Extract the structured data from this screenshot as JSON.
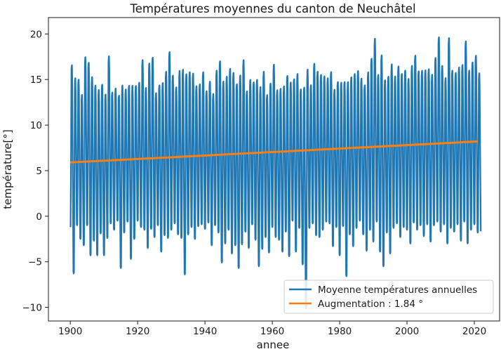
{
  "chart_data": {
    "type": "line",
    "title": "Températures moyennes du canton de Neuchâtel",
    "xlabel": "annee",
    "ylabel": "température[°]",
    "xlim": [
      1893.5,
      2027.5
    ],
    "ylim": [
      -11.5,
      21.8
    ],
    "xticks": [
      1900,
      1920,
      1940,
      1960,
      1980,
      2000,
      2020
    ],
    "yticks": [
      -10,
      -5,
      0,
      5,
      10,
      15,
      20
    ],
    "x_tick_labels": [
      "1900",
      "1920",
      "1940",
      "1960",
      "1980",
      "2000",
      "2020"
    ],
    "y_tick_labels": [
      "−10",
      "−5",
      "0",
      "5",
      "10",
      "15",
      "20"
    ],
    "grid": false,
    "legend_position": "lower right",
    "series": [
      {
        "name": "Moyenne températures annuelles",
        "color": "#1f77b4",
        "kind": "monthly",
        "x_start": 1900,
        "x_end": 2021,
        "summer_peaks": [
          17.5,
          15.8,
          15.7,
          14.0,
          18.2,
          17.7,
          16.0,
          15.1,
          14.5,
          15.2,
          14.0,
          18.3,
          14.2,
          14.6,
          14.0,
          15.0,
          14.5,
          15.1,
          15.0,
          14.9,
          15.3,
          17.9,
          14.8,
          17.5,
          18.2,
          14.1,
          15.1,
          15.3,
          16.6,
          18.8,
          16.1,
          14.8,
          16.7,
          17.0,
          16.3,
          16.5,
          16.4,
          14.9,
          15.1,
          16.5,
          14.3,
          15.5,
          14.0,
          16.7,
          17.9,
          15.5,
          16.0,
          17.0,
          16.5,
          15.3,
          16.2,
          17.9,
          14.4,
          15.6,
          15.4,
          15.8,
          14.9,
          16.6,
          14.0,
          15.2,
          17.4,
          14.5,
          14.7,
          14.9,
          16.2,
          15.3,
          15.8,
          16.3,
          14.7,
          15.1,
          16.8,
          15.0,
          17.5,
          16.6,
          16.2,
          16.0,
          15.8,
          16.6,
          14.5,
          15.5,
          15.3,
          15.6,
          15.4,
          16.0,
          16.3,
          16.6,
          15.8,
          15.1,
          16.5,
          18.1,
          20.3,
          16.3,
          18.6,
          15.6,
          16.1,
          17.4,
          16.0,
          17.2,
          16.3,
          16.7,
          15.8,
          17.2,
          18.4,
          16.6,
          16.7,
          16.7,
          16.9,
          16.2,
          18.1,
          20.5,
          17.2,
          15.9,
          20.4,
          16.7,
          16.4,
          17.1,
          17.3,
          20.1,
          16.7,
          17.6,
          18.4,
          16.4
        ],
        "winter_lows": [
          -1.2,
          -6.3,
          -1.0,
          -2.5,
          -3.2,
          -1.0,
          -4.3,
          -2.7,
          -4.3,
          -1.9,
          -4.3,
          -2.4,
          -0.8,
          -1.5,
          -0.5,
          -5.7,
          -1.8,
          -0.6,
          -4.7,
          -2.5,
          -0.5,
          -1.2,
          -1.5,
          -3.5,
          -1.4,
          -2.3,
          -1.0,
          -3.9,
          -2.1,
          -2.4,
          -1.5,
          -0.8,
          -2.0,
          -2.4,
          -6.4,
          -2.0,
          -1.2,
          -2.5,
          -1.1,
          -0.9,
          -1.4,
          -0.7,
          -3.2,
          -1.0,
          -1.8,
          -5.1,
          -3.0,
          -1.5,
          -4.1,
          -3.2,
          -5.7,
          -3.1,
          -1.7,
          -3.5,
          -0.9,
          -2.6,
          -5.5,
          -3.6,
          -2.3,
          -4.0,
          -1.2,
          -2.3,
          -2.6,
          -3.9,
          -1.7,
          -4.4,
          -0.5,
          -3.9,
          -1.3,
          -5.3,
          -10.1,
          -1.3,
          -0.8,
          -2.1,
          -2.3,
          -1.5,
          -0.6,
          -0.8,
          -3.3,
          -1.2,
          -4.3,
          -1.1,
          -6.6,
          -2.0,
          -3.3,
          -1.3,
          -0.5,
          -2.0,
          -3.8,
          -1.5,
          -2.8,
          -0.6,
          -3.9,
          -5.5,
          -1.8,
          -4.1,
          -1.3,
          -0.8,
          -2.3,
          -1.2,
          -1.5,
          -3.0,
          -0.7,
          -1.5,
          -1.0,
          -2.2,
          -0.9,
          -2.8,
          -1.0,
          -0.6,
          -1.7,
          -0.9,
          -3.0,
          -1.3,
          -1.7,
          -0.9,
          -2.7,
          -0.6,
          -3.0,
          -1.5,
          -0.9,
          -1.8
        ],
        "note_from_image": "12 monthly values per year, peaks and lows read from the chart"
      },
      {
        "name": "Augmentation : 1.84 °",
        "color": "#ff7f0e",
        "kind": "trend",
        "x": [
          1900,
          2021
        ],
        "y": [
          5.9,
          8.2
        ]
      }
    ]
  },
  "legend": {
    "series_0": "Moyenne températures annuelles",
    "series_1": "Augmentation : 1.84 °"
  }
}
